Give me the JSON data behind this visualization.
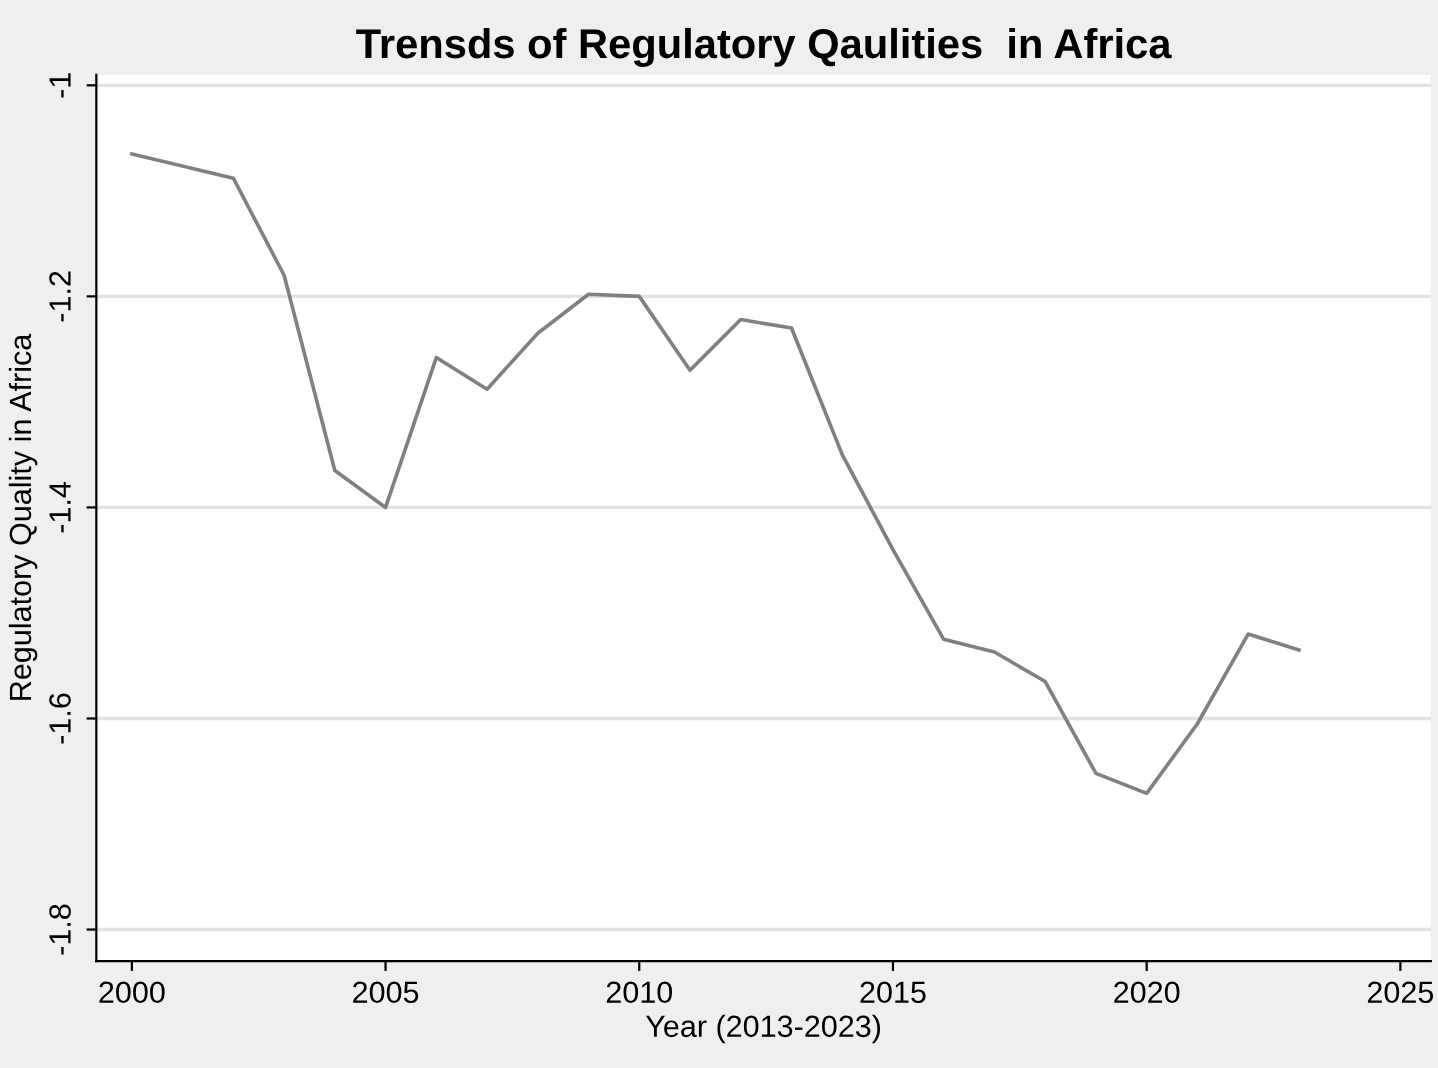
{
  "chart_data": {
    "type": "line",
    "title": "Trensds of Regulatory Qaulities  in Africa",
    "xlabel": "Year (2013-2023)",
    "ylabel": "Regulatory Quality in Africa",
    "x": [
      2000,
      2002,
      2003,
      2004,
      2005,
      2006,
      2007,
      2008,
      2009,
      2010,
      2011,
      2012,
      2013,
      2014,
      2015,
      2016,
      2017,
      2018,
      2019,
      2020,
      2021,
      2022,
      2023
    ],
    "series": [
      {
        "color": "#808080",
        "values": [
          -1.065,
          -1.088,
          -1.18,
          -1.365,
          -1.4,
          -1.258,
          -1.288,
          -1.235,
          -1.198,
          -1.2,
          -1.27,
          -1.222,
          -1.23,
          -1.35,
          -1.44,
          -1.525,
          -1.537,
          -1.565,
          -1.652,
          -1.671,
          -1.605,
          -1.52,
          -1.535
        ]
      }
    ],
    "xlim": [
      1999.3,
      2025.6
    ],
    "ylim": [
      -1.83,
      -0.99
    ],
    "xticks": [
      2000,
      2005,
      2010,
      2015,
      2020,
      2025
    ],
    "yticks": [
      -1,
      -1.2,
      -1.4,
      -1.6,
      -1.8
    ],
    "grid": "y",
    "marker": "none",
    "line_style": "solid",
    "legend": false
  }
}
